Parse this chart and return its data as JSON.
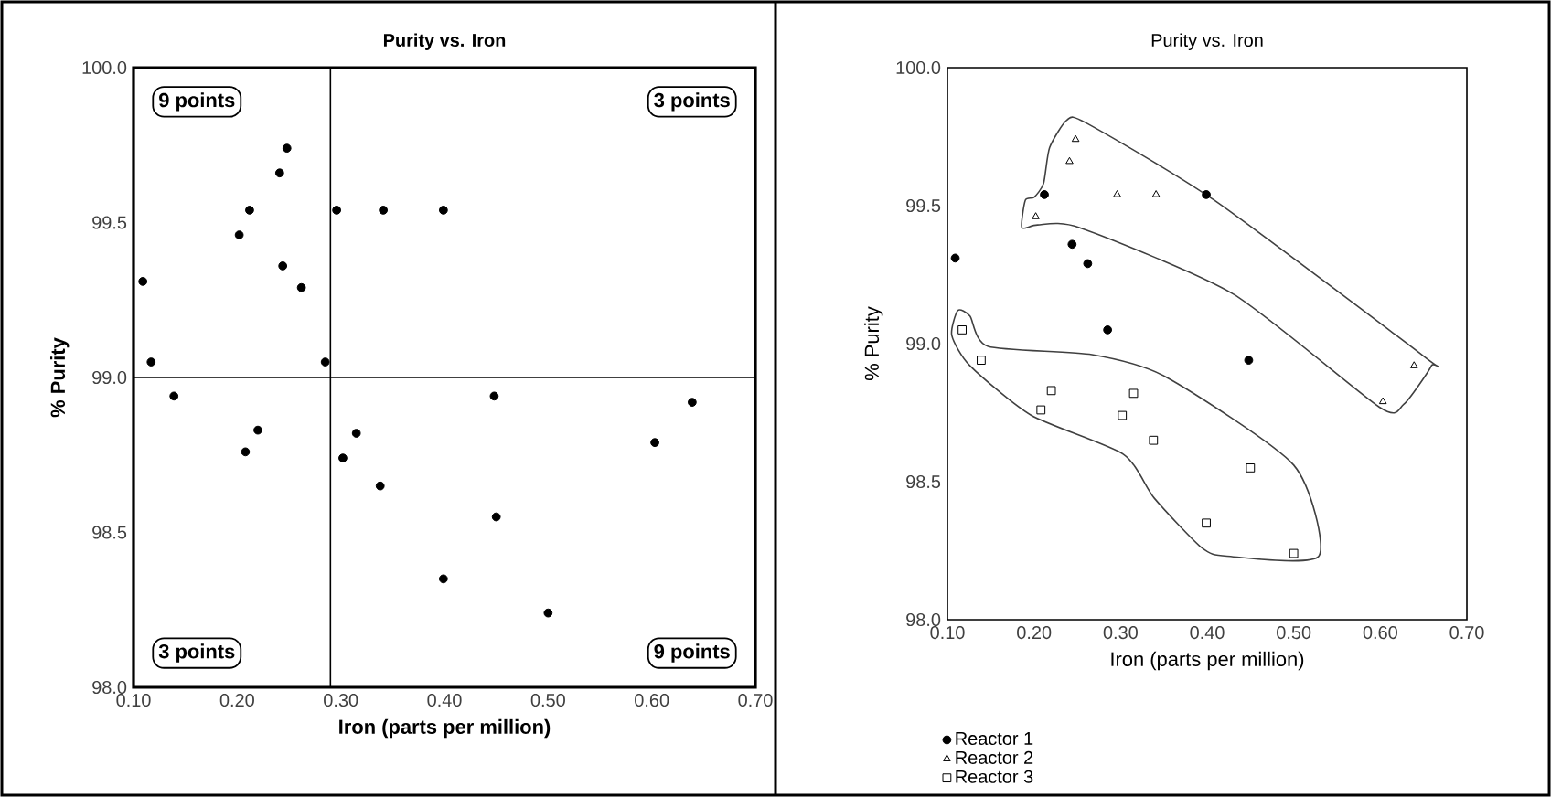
{
  "chart_data": [
    {
      "type": "scatter",
      "title": "Purity vs. Iron",
      "xlabel": "Iron (parts per million)",
      "ylabel": "% Purity",
      "marker": "circle",
      "grid": false,
      "xlim": [
        0.1,
        0.7
      ],
      "ylim": [
        98.0,
        100.0
      ],
      "xticks": [
        {
          "value": 0.1,
          "label": "0.10"
        },
        {
          "value": 0.2,
          "label": "0.20"
        },
        {
          "value": 0.3,
          "label": "0.30"
        },
        {
          "value": 0.4,
          "label": "0.40"
        },
        {
          "value": 0.5,
          "label": "0.50"
        },
        {
          "value": 0.6,
          "label": "0.60"
        },
        {
          "value": 0.7,
          "label": "0.70"
        }
      ],
      "yticks": [
        {
          "value": 98,
          "label": "98.0"
        },
        {
          "value": 98.5,
          "label": "98.5"
        },
        {
          "value": 99,
          "label": "99.0"
        },
        {
          "value": 99.5,
          "label": "99.5"
        },
        {
          "value": 100,
          "label": "100.0"
        }
      ],
      "ref_lines": [
        {
          "axis": "x",
          "value": 0.29,
          "color": "#000000"
        },
        {
          "axis": "y",
          "value": 99.0,
          "color": "#000000"
        }
      ],
      "annotations": [
        "9 points",
        "3 points",
        "3 points",
        "9 points"
      ],
      "series": [
        {
          "color": "#000000",
          "x": [
            0.109,
            0.117,
            0.139,
            0.202,
            0.212,
            0.208,
            0.22,
            0.241,
            0.248,
            0.244,
            0.262,
            0.285,
            0.296,
            0.302,
            0.315,
            0.341,
            0.338,
            0.399,
            0.399,
            0.448,
            0.45,
            0.5,
            0.603,
            0.639
          ],
          "values": [
            99.31,
            99.05,
            98.94,
            99.46,
            99.54,
            98.76,
            98.83,
            99.66,
            99.74,
            99.36,
            99.29,
            99.05,
            99.54,
            98.74,
            98.82,
            99.54,
            98.65,
            99.54,
            98.35,
            98.94,
            98.55,
            98.24,
            98.79,
            98.92
          ]
        }
      ]
    },
    {
      "type": "scatter",
      "title": "Purity vs. Iron",
      "xlabel": "Iron (parts per million)",
      "ylabel": "% Purity",
      "grid": false,
      "legend": "bottom left",
      "xlim": [
        0.1,
        0.7
      ],
      "ylim": [
        98.0,
        100.0
      ],
      "xticks": [
        {
          "value": 0.1,
          "label": "0.10"
        },
        {
          "value": 0.2,
          "label": "0.20"
        },
        {
          "value": 0.3,
          "label": "0.30"
        },
        {
          "value": 0.4,
          "label": "0.40"
        },
        {
          "value": 0.5,
          "label": "0.50"
        },
        {
          "value": 0.6,
          "label": "0.60"
        },
        {
          "value": 0.7,
          "label": "0.70"
        }
      ],
      "yticks": [
        {
          "value": 98,
          "label": "98.0"
        },
        {
          "value": 98.5,
          "label": "98.5"
        },
        {
          "value": 99,
          "label": "99.0"
        },
        {
          "value": 99.5,
          "label": "99.5"
        },
        {
          "value": 100,
          "label": "100.0"
        }
      ],
      "series": [
        {
          "name": "Reactor 1",
          "color": "#000000",
          "marker": "circle",
          "x": [
            0.109,
            0.212,
            0.244,
            0.262,
            0.285,
            0.399,
            0.448
          ],
          "values": [
            99.31,
            99.54,
            99.36,
            99.29,
            99.05,
            99.54,
            98.94
          ]
        },
        {
          "name": "Reactor 2",
          "color": "#000000",
          "marker": "triangle",
          "x": [
            0.202,
            0.241,
            0.248,
            0.296,
            0.341,
            0.603,
            0.639
          ],
          "values": [
            99.46,
            99.66,
            99.74,
            99.54,
            99.54,
            98.79,
            98.92
          ]
        },
        {
          "name": "Reactor 3",
          "color": "#000000",
          "marker": "square",
          "x": [
            0.117,
            0.139,
            0.208,
            0.22,
            0.302,
            0.315,
            0.338,
            0.45,
            0.399,
            0.5
          ],
          "values": [
            99.05,
            98.94,
            98.76,
            98.83,
            98.74,
            98.82,
            98.65,
            98.55,
            98.35,
            98.24
          ]
        }
      ]
    }
  ]
}
